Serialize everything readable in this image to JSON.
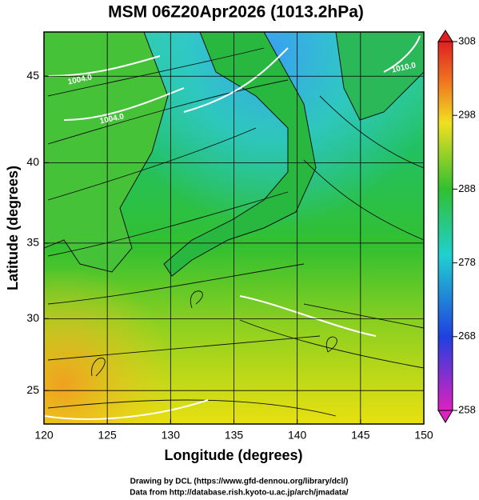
{
  "chart_data": {
    "type": "map",
    "title": "MSM 06Z20Apr2026 (1013.2hPa)",
    "xlabel": "Longitude (degrees)",
    "ylabel": "Latitude  (degrees)",
    "projection": "mercator",
    "xlim": [
      120,
      150
    ],
    "ylim": [
      22.6,
      47.4
    ],
    "xticks": [
      120,
      125,
      130,
      135,
      140,
      145,
      150
    ],
    "yticks": [
      25,
      30,
      35,
      40,
      45
    ],
    "grid": true,
    "contour_labels": [
      "1004.0",
      "1004.0",
      "1010.0"
    ],
    "colorbar": {
      "lim": [
        258,
        308
      ],
      "ticks": [
        258,
        268,
        278,
        288,
        298,
        308
      ]
    }
  },
  "footer": [
    "Drawing by DCL (https://www.gfd-dennou.org/library/dcl/)",
    "Data from http://database.rish.kyoto-u.ac.jp/arch/jmadata/"
  ]
}
